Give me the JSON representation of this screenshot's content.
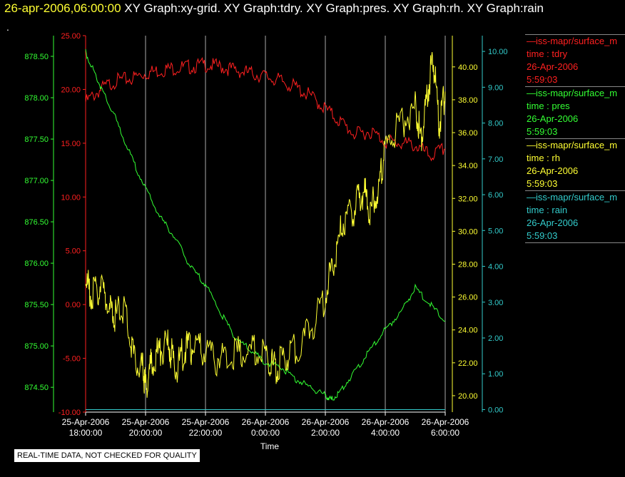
{
  "header": {
    "timestamp": "26-apr-2006,06:00:00",
    "graphs": "XY Graph:xy-grid.  XY Graph:tdry.  XY Graph:pres.  XY Graph:rh.  XY Graph:rain",
    "dot": "."
  },
  "footer_note": "REAL-TIME DATA, NOT CHECKED FOR QUALITY",
  "legend": [
    {
      "name": "—iss-mapr/surface_m",
      "field": "time : tdry",
      "date": "26-Apr-2006",
      "time": "5:59:03",
      "color": "#ff2020"
    },
    {
      "name": "—iss-mapr/surface_m",
      "field": "time : pres",
      "date": "26-Apr-2006",
      "time": "5:59:03",
      "color": "#33ff33"
    },
    {
      "name": "—iss-mapr/surface_m",
      "field": "time : rh",
      "date": "26-Apr-2006",
      "time": "5:59:03",
      "color": "#ffff33"
    },
    {
      "name": "—iss-mapr/surface_m",
      "field": "time : rain",
      "date": "26-Apr-2006",
      "time": "5:59:03",
      "color": "#33cccc"
    }
  ],
  "chart_data": {
    "type": "line",
    "xlabel": "Time",
    "x_ticks": [
      {
        "d": "25-Apr-2006",
        "t": "18:00:00",
        "h": 0
      },
      {
        "d": "25-Apr-2006",
        "t": "20:00:00",
        "h": 2
      },
      {
        "d": "25-Apr-2006",
        "t": "22:00:00",
        "h": 4
      },
      {
        "d": "26-Apr-2006",
        "t": "0:00:00",
        "h": 6
      },
      {
        "d": "26-Apr-2006",
        "t": "2:00:00",
        "h": 8
      },
      {
        "d": "26-Apr-2006",
        "t": "4:00:00",
        "h": 10
      },
      {
        "d": "26-Apr-2006",
        "t": "6:00:00",
        "h": 12
      }
    ],
    "xlim_hours": [
      0,
      12
    ],
    "grid": "vertical",
    "legend_position": "right",
    "axes": [
      {
        "id": "tdry",
        "color": "#ff2020",
        "side": "left",
        "range": [
          -10,
          25
        ],
        "ticks": [
          "25.00",
          "20.00",
          "15.00",
          "10.00",
          "5.00",
          "0.00",
          "-5.00",
          "-10.00"
        ]
      },
      {
        "id": "pres",
        "color": "#33ff33",
        "side": "left",
        "range": [
          874.2,
          878.75
        ],
        "ticks": [
          "878.50",
          "878.00",
          "877.50",
          "877.00",
          "876.50",
          "876.00",
          "875.50",
          "875.00",
          "874.50"
        ]
      },
      {
        "id": "rh",
        "color": "#ffff33",
        "side": "right",
        "range": [
          19.0,
          41.9
        ],
        "ticks": [
          "40.00",
          "38.00",
          "36.00",
          "34.00",
          "32.00",
          "30.00",
          "28.00",
          "26.00",
          "24.00",
          "22.00",
          "20.00"
        ]
      },
      {
        "id": "rain",
        "color": "#33cccc",
        "side": "right",
        "range": [
          -0.07,
          10.44
        ],
        "ticks": [
          "10.00",
          "9.00",
          "8.00",
          "7.00",
          "6.00",
          "5.00",
          "4.00",
          "3.00",
          "2.00",
          "1.00",
          "0.00"
        ]
      }
    ],
    "series": [
      {
        "axis": "tdry",
        "color": "#ff2020",
        "x": [
          0,
          0.5,
          1,
          1.5,
          2,
          2.5,
          3,
          3.5,
          4,
          4.5,
          5,
          5.5,
          6,
          6.5,
          7,
          7.5,
          8,
          8.5,
          9,
          9.5,
          10,
          10.5,
          11,
          11.5,
          12
        ],
        "y": [
          18.8,
          20.0,
          20.8,
          21.0,
          21.5,
          21.8,
          22.0,
          22.1,
          22.3,
          22.1,
          21.8,
          21.5,
          21.2,
          20.8,
          20.2,
          19.4,
          18.2,
          17.0,
          15.8,
          16.1,
          15.2,
          15.0,
          14.8,
          13.8,
          14.5
        ]
      },
      {
        "axis": "pres",
        "color": "#33ff33",
        "x": [
          0,
          0.3,
          0.6,
          1,
          1.5,
          2,
          2.5,
          3,
          3.5,
          4,
          4.5,
          5,
          5.5,
          6,
          6.5,
          7,
          7.5,
          8,
          8.2,
          8.5,
          9,
          9.5,
          10,
          10.5,
          11,
          11.5,
          12
        ],
        "y": [
          878.55,
          878.3,
          878.05,
          877.75,
          877.3,
          876.9,
          876.55,
          876.3,
          875.95,
          875.75,
          875.4,
          875.1,
          874.95,
          874.8,
          874.75,
          874.6,
          874.5,
          874.4,
          874.35,
          874.45,
          874.7,
          874.95,
          875.2,
          875.4,
          875.7,
          875.5,
          875.3
        ]
      },
      {
        "axis": "rh",
        "color": "#ffff33",
        "x": [
          0,
          0.2,
          0.5,
          0.8,
          1,
          1.3,
          1.6,
          1.9,
          2.0,
          2.2,
          2.5,
          2.8,
          3.0,
          3.3,
          3.6,
          4,
          4.5,
          5,
          5.5,
          6,
          6.3,
          6.6,
          7,
          7.5,
          8,
          8.3,
          8.6,
          9,
          9.3,
          9.5,
          9.8,
          10,
          10.5,
          11,
          11.2,
          11.4,
          11.6,
          11.8,
          12
        ],
        "y": [
          27.0,
          26.0,
          26.8,
          25.2,
          24.8,
          25.5,
          22.4,
          21.6,
          20.5,
          22.0,
          22.8,
          23.0,
          21.6,
          22.8,
          23.0,
          22.6,
          22.2,
          22.6,
          22.8,
          22.5,
          21.7,
          22.2,
          22.8,
          24.0,
          26.0,
          28.5,
          30.5,
          31.5,
          32.5,
          31.0,
          33.0,
          35.0,
          36.5,
          37.5,
          35.5,
          38.5,
          40.5,
          36.5,
          38.5
        ]
      },
      {
        "axis": "rain",
        "color": "#33cccc",
        "x": [
          0,
          12
        ],
        "y": [
          0,
          0
        ]
      }
    ]
  }
}
